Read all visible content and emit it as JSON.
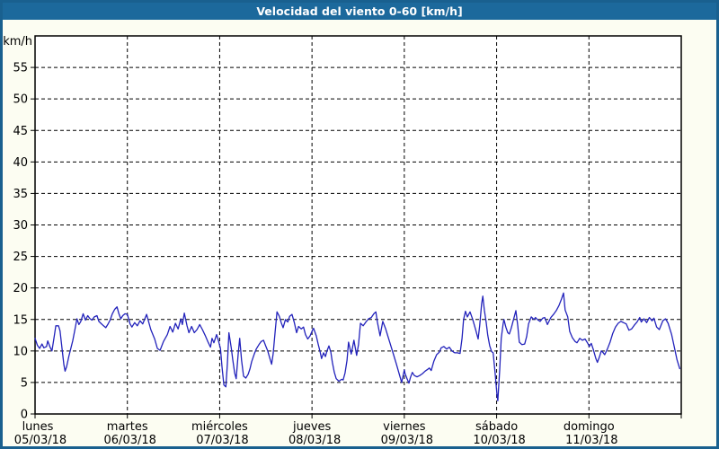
{
  "window": {
    "title": "Velocidad del viento 0-60 [km/h]"
  },
  "colors": {
    "title_bar_bg": "#1C699C",
    "title_text": "#FFFFFF",
    "window_border": "#19608F",
    "window_bg": "#FCFDF2",
    "plot_bg": "#FFFFFF",
    "grid": "#000000",
    "axis_text": "#000000",
    "series_line": "#2222BB"
  },
  "chart_data": {
    "type": "line",
    "title": "Velocidad del viento 0-60 [km/h]",
    "xlabel": "",
    "ylabel": "km/h",
    "ylim": [
      0,
      60
    ],
    "ytick_step": 5,
    "yticks": [
      0,
      5,
      10,
      15,
      20,
      25,
      30,
      35,
      40,
      45,
      50,
      55
    ],
    "grid": "dashed",
    "legend": "none",
    "x_unit": "hours_since_start",
    "xlim": [
      0,
      168
    ],
    "days": [
      {
        "name": "lunes",
        "date": "05/03/18"
      },
      {
        "name": "martes",
        "date": "06/03/18"
      },
      {
        "name": "miércoles",
        "date": "07/03/18"
      },
      {
        "name": "jueves",
        "date": "08/03/18"
      },
      {
        "name": "viernes",
        "date": "09/03/18"
      },
      {
        "name": "sábado",
        "date": "10/03/18"
      },
      {
        "name": "domingo",
        "date": "11/03/18"
      }
    ],
    "series": [
      {
        "name": "wind_speed_kmh",
        "points": [
          [
            0,
            12.0
          ],
          [
            0.6,
            10.9
          ],
          [
            1.2,
            10.4
          ],
          [
            1.8,
            11.1
          ],
          [
            2.3,
            10.5
          ],
          [
            3.0,
            10.7
          ],
          [
            3.3,
            11.6
          ],
          [
            3.9,
            10.6
          ],
          [
            4.4,
            10.0
          ],
          [
            4.9,
            12.0
          ],
          [
            5.4,
            14.0
          ],
          [
            6.1,
            14.0
          ],
          [
            6.5,
            13.2
          ],
          [
            7.0,
            10.4
          ],
          [
            7.5,
            7.8
          ],
          [
            7.8,
            6.8
          ],
          [
            8.2,
            7.5
          ],
          [
            8.8,
            9.2
          ],
          [
            9.3,
            10.4
          ],
          [
            9.8,
            11.6
          ],
          [
            10.4,
            13.5
          ],
          [
            10.9,
            15.1
          ],
          [
            11.4,
            14.2
          ],
          [
            11.9,
            14.7
          ],
          [
            12.5,
            15.9
          ],
          [
            13.1,
            14.9
          ],
          [
            13.7,
            15.6
          ],
          [
            14.3,
            15.1
          ],
          [
            14.8,
            14.9
          ],
          [
            15.4,
            15.4
          ],
          [
            16.1,
            15.6
          ],
          [
            16.6,
            14.7
          ],
          [
            17.1,
            14.4
          ],
          [
            17.8,
            14.0
          ],
          [
            18.4,
            13.7
          ],
          [
            18.9,
            14.2
          ],
          [
            19.5,
            14.9
          ],
          [
            20.1,
            15.9
          ],
          [
            20.7,
            16.6
          ],
          [
            21.3,
            17.0
          ],
          [
            21.8,
            15.9
          ],
          [
            22.3,
            15.1
          ],
          [
            22.8,
            15.6
          ],
          [
            23.4,
            15.9
          ],
          [
            24.0,
            15.8
          ],
          [
            24.7,
            14.3
          ],
          [
            25.2,
            13.8
          ],
          [
            25.9,
            14.5
          ],
          [
            26.6,
            14.0
          ],
          [
            27.3,
            14.8
          ],
          [
            28.0,
            14.3
          ],
          [
            29.0,
            15.8
          ],
          [
            30.1,
            13.4
          ],
          [
            31.1,
            11.9
          ],
          [
            31.8,
            10.4
          ],
          [
            32.5,
            10.1
          ],
          [
            33.4,
            11.5
          ],
          [
            34.4,
            12.6
          ],
          [
            35.1,
            13.9
          ],
          [
            35.8,
            13.0
          ],
          [
            36.5,
            14.4
          ],
          [
            37.2,
            13.5
          ],
          [
            37.9,
            15.1
          ],
          [
            38.3,
            14.2
          ],
          [
            38.8,
            16.0
          ],
          [
            39.5,
            14.0
          ],
          [
            40.0,
            12.9
          ],
          [
            40.7,
            13.9
          ],
          [
            41.4,
            12.9
          ],
          [
            42.1,
            13.4
          ],
          [
            42.8,
            14.2
          ],
          [
            43.5,
            13.4
          ],
          [
            44.2,
            12.5
          ],
          [
            44.9,
            11.5
          ],
          [
            45.6,
            10.6
          ],
          [
            46.0,
            12.0
          ],
          [
            46.5,
            11.3
          ],
          [
            47.2,
            12.6
          ],
          [
            47.7,
            11.6
          ],
          [
            48.2,
            10.4
          ],
          [
            48.6,
            7.5
          ],
          [
            49.1,
            4.6
          ],
          [
            49.6,
            4.3
          ],
          [
            50.0,
            8.0
          ],
          [
            50.4,
            12.9
          ],
          [
            51.0,
            10.5
          ],
          [
            51.4,
            8.6
          ],
          [
            51.9,
            6.5
          ],
          [
            52.3,
            5.6
          ],
          [
            52.8,
            9.5
          ],
          [
            53.2,
            12.0
          ],
          [
            53.7,
            8.5
          ],
          [
            54.2,
            6.0
          ],
          [
            54.8,
            5.7
          ],
          [
            55.4,
            6.3
          ],
          [
            55.9,
            7.2
          ],
          [
            56.3,
            8.3
          ],
          [
            57.0,
            9.5
          ],
          [
            57.5,
            10.3
          ],
          [
            58.2,
            11.0
          ],
          [
            58.8,
            11.5
          ],
          [
            59.4,
            11.7
          ],
          [
            60.1,
            10.6
          ],
          [
            60.5,
            10.0
          ],
          [
            61.0,
            8.9
          ],
          [
            61.5,
            7.9
          ],
          [
            61.9,
            9.5
          ],
          [
            62.4,
            13.0
          ],
          [
            62.9,
            16.2
          ],
          [
            63.5,
            15.5
          ],
          [
            64.0,
            14.5
          ],
          [
            64.5,
            13.7
          ],
          [
            65.1,
            15.0
          ],
          [
            65.7,
            14.6
          ],
          [
            66.2,
            15.5
          ],
          [
            66.8,
            15.8
          ],
          [
            67.4,
            14.5
          ],
          [
            68.0,
            12.9
          ],
          [
            68.5,
            13.9
          ],
          [
            69.2,
            13.5
          ],
          [
            69.8,
            13.8
          ],
          [
            70.3,
            12.6
          ],
          [
            70.9,
            11.9
          ],
          [
            71.5,
            12.4
          ],
          [
            72.2,
            13.4
          ],
          [
            72.4,
            13.6
          ],
          [
            73.1,
            12.4
          ],
          [
            73.6,
            11.1
          ],
          [
            74.1,
            9.9
          ],
          [
            74.5,
            8.8
          ],
          [
            75.0,
            9.7
          ],
          [
            75.5,
            9.1
          ],
          [
            75.9,
            10.0
          ],
          [
            76.4,
            10.8
          ],
          [
            76.9,
            9.8
          ],
          [
            77.3,
            8.2
          ],
          [
            77.8,
            6.6
          ],
          [
            78.3,
            5.6
          ],
          [
            79.0,
            5.2
          ],
          [
            79.7,
            5.5
          ],
          [
            80.1,
            5.4
          ],
          [
            80.6,
            6.5
          ],
          [
            81.1,
            8.5
          ],
          [
            81.5,
            11.4
          ],
          [
            82.2,
            9.5
          ],
          [
            82.9,
            11.7
          ],
          [
            83.6,
            9.3
          ],
          [
            84.1,
            11.0
          ],
          [
            84.6,
            14.4
          ],
          [
            85.3,
            14.0
          ],
          [
            86.0,
            14.6
          ],
          [
            86.7,
            15.1
          ],
          [
            87.4,
            15.3
          ],
          [
            88.1,
            15.9
          ],
          [
            88.6,
            16.2
          ],
          [
            89.0,
            14.6
          ],
          [
            89.7,
            12.4
          ],
          [
            90.4,
            14.7
          ],
          [
            91.1,
            13.6
          ],
          [
            91.8,
            12.2
          ],
          [
            92.5,
            10.8
          ],
          [
            93.2,
            9.4
          ],
          [
            93.9,
            8.0
          ],
          [
            94.6,
            6.5
          ],
          [
            95.3,
            5.0
          ],
          [
            96.0,
            7.0
          ],
          [
            96.2,
            6.4
          ],
          [
            96.7,
            5.6
          ],
          [
            97.2,
            4.9
          ],
          [
            97.6,
            5.8
          ],
          [
            98.1,
            6.6
          ],
          [
            98.6,
            6.1
          ],
          [
            99.3,
            5.9
          ],
          [
            100.0,
            6.1
          ],
          [
            100.7,
            6.4
          ],
          [
            101.4,
            6.8
          ],
          [
            102.1,
            7.1
          ],
          [
            102.5,
            7.3
          ],
          [
            103.0,
            6.9
          ],
          [
            103.7,
            8.4
          ],
          [
            104.4,
            9.4
          ],
          [
            105.1,
            9.8
          ],
          [
            105.6,
            10.5
          ],
          [
            106.3,
            10.7
          ],
          [
            107.0,
            10.3
          ],
          [
            107.7,
            10.6
          ],
          [
            108.4,
            10.0
          ],
          [
            109.1,
            9.7
          ],
          [
            109.8,
            9.7
          ],
          [
            110.5,
            9.6
          ],
          [
            111.0,
            12.0
          ],
          [
            111.4,
            15.0
          ],
          [
            111.9,
            16.3
          ],
          [
            112.4,
            15.4
          ],
          [
            113.1,
            16.2
          ],
          [
            113.8,
            15.0
          ],
          [
            114.5,
            13.5
          ],
          [
            115.2,
            11.9
          ],
          [
            115.6,
            14.0
          ],
          [
            116.1,
            17.5
          ],
          [
            116.4,
            18.7
          ],
          [
            116.8,
            16.5
          ],
          [
            117.3,
            14.5
          ],
          [
            117.7,
            12.5
          ],
          [
            118.2,
            10.8
          ],
          [
            118.7,
            9.9
          ],
          [
            119.1,
            9.7
          ],
          [
            119.6,
            6.5
          ],
          [
            120.1,
            3.0
          ],
          [
            120.3,
            2.1
          ],
          [
            120.8,
            7.0
          ],
          [
            121.2,
            12.0
          ],
          [
            121.7,
            14.3
          ],
          [
            121.9,
            15.0
          ],
          [
            122.4,
            13.8
          ],
          [
            122.9,
            12.9
          ],
          [
            123.3,
            12.7
          ],
          [
            123.8,
            13.6
          ],
          [
            124.3,
            14.8
          ],
          [
            125.0,
            16.4
          ],
          [
            125.5,
            14.0
          ],
          [
            125.9,
            11.4
          ],
          [
            126.6,
            11.0
          ],
          [
            127.3,
            11.1
          ],
          [
            127.8,
            12.3
          ],
          [
            128.3,
            14.3
          ],
          [
            129.0,
            15.4
          ],
          [
            129.7,
            15.0
          ],
          [
            130.1,
            15.3
          ],
          [
            130.6,
            15.0
          ],
          [
            131.3,
            14.7
          ],
          [
            132.0,
            15.2
          ],
          [
            132.5,
            15.3
          ],
          [
            133.2,
            14.2
          ],
          [
            133.6,
            14.7
          ],
          [
            134.1,
            15.3
          ],
          [
            134.8,
            15.8
          ],
          [
            135.5,
            16.4
          ],
          [
            136.2,
            17.2
          ],
          [
            136.9,
            18.3
          ],
          [
            137.4,
            19.2
          ],
          [
            137.8,
            16.5
          ],
          [
            138.5,
            15.4
          ],
          [
            139.0,
            13.1
          ],
          [
            139.7,
            12.1
          ],
          [
            140.4,
            11.5
          ],
          [
            140.9,
            11.3
          ],
          [
            141.6,
            12.0
          ],
          [
            142.3,
            11.7
          ],
          [
            143.0,
            11.9
          ],
          [
            143.7,
            11.2
          ],
          [
            144.1,
            10.7
          ],
          [
            144.6,
            11.2
          ],
          [
            145.1,
            10.3
          ],
          [
            145.8,
            8.8
          ],
          [
            146.2,
            8.2
          ],
          [
            146.7,
            9.0
          ],
          [
            147.2,
            10.0
          ],
          [
            147.6,
            9.8
          ],
          [
            148.1,
            9.4
          ],
          [
            148.8,
            10.3
          ],
          [
            149.5,
            11.4
          ],
          [
            150.2,
            12.8
          ],
          [
            150.9,
            13.8
          ],
          [
            151.6,
            14.4
          ],
          [
            152.3,
            14.7
          ],
          [
            153.0,
            14.5
          ],
          [
            153.7,
            14.3
          ],
          [
            154.4,
            13.3
          ],
          [
            155.1,
            13.5
          ],
          [
            155.8,
            14.1
          ],
          [
            156.5,
            14.6
          ],
          [
            157.2,
            15.3
          ],
          [
            157.6,
            14.6
          ],
          [
            158.3,
            15.1
          ],
          [
            159.0,
            14.5
          ],
          [
            159.7,
            15.3
          ],
          [
            160.4,
            14.8
          ],
          [
            160.9,
            15.2
          ],
          [
            161.6,
            13.8
          ],
          [
            162.3,
            13.4
          ],
          [
            163.2,
            14.8
          ],
          [
            163.9,
            15.1
          ],
          [
            164.6,
            14.4
          ],
          [
            165.5,
            12.6
          ],
          [
            166.2,
            10.6
          ],
          [
            166.9,
            8.6
          ],
          [
            167.6,
            7.2
          ]
        ]
      }
    ]
  }
}
